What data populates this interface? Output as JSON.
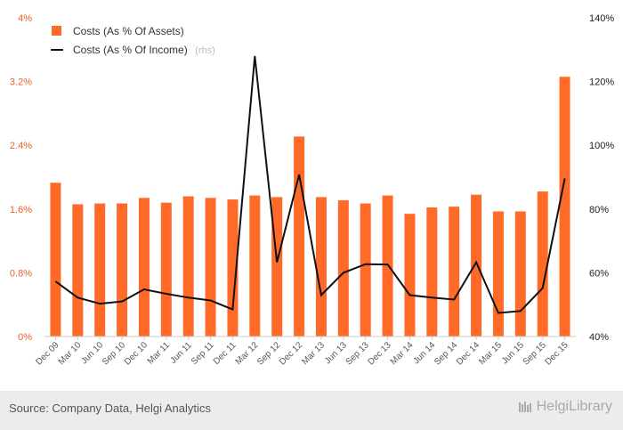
{
  "chart_data": {
    "type": "bar+line",
    "categories": [
      "Dec 09",
      "Mar 10",
      "Jun 10",
      "Sep 10",
      "Dec 10",
      "Mar 11",
      "Jun 11",
      "Sep 11",
      "Dec 11",
      "Mar 12",
      "Sep 12",
      "Dec 12",
      "Mar 13",
      "Jun 13",
      "Sep 13",
      "Dec 13",
      "Mar 14",
      "Jun 14",
      "Sep 14",
      "Dec 14",
      "Mar 15",
      "Jun 15",
      "Sep 15",
      "Dec 15"
    ],
    "series": [
      {
        "name": "Costs (As % Of Assets)",
        "type": "bar",
        "axis": "left",
        "values": [
          1.93,
          1.66,
          1.67,
          1.67,
          1.74,
          1.68,
          1.76,
          1.74,
          1.72,
          1.77,
          1.75,
          2.51,
          1.75,
          1.71,
          1.67,
          1.77,
          1.54,
          1.62,
          1.63,
          1.78,
          1.57,
          1.57,
          1.82,
          3.26
        ]
      },
      {
        "name": "Costs (As % Of Income)",
        "name_suffix": "(rhs)",
        "type": "line",
        "axis": "right",
        "values": [
          57.3,
          52.2,
          50.3,
          51.0,
          54.8,
          53.4,
          52.2,
          51.3,
          48.5,
          128.0,
          63.3,
          90.8,
          53.0,
          60.0,
          62.7,
          62.6,
          53.0,
          52.2,
          51.6,
          63.3,
          47.4,
          48.0,
          55.2,
          89.6
        ]
      }
    ],
    "left_axis": {
      "ticks": [
        "0%",
        "0.8%",
        "1.6%",
        "2.4%",
        "3.2%",
        "4%"
      ],
      "min": 0,
      "max": 4
    },
    "right_axis": {
      "ticks": [
        "40%",
        "60%",
        "80%",
        "100%",
        "120%",
        "140%"
      ],
      "min": 40,
      "max": 140
    },
    "legend_position": "top-left",
    "grid": false,
    "colors": {
      "bar": "#ff6a28",
      "line": "#111111",
      "left_ticks": "#e8622a",
      "right_ticks": "#222222"
    }
  },
  "footer": {
    "source": "Source: Company Data, Helgi Analytics",
    "brand": "HelgiLibrary"
  }
}
